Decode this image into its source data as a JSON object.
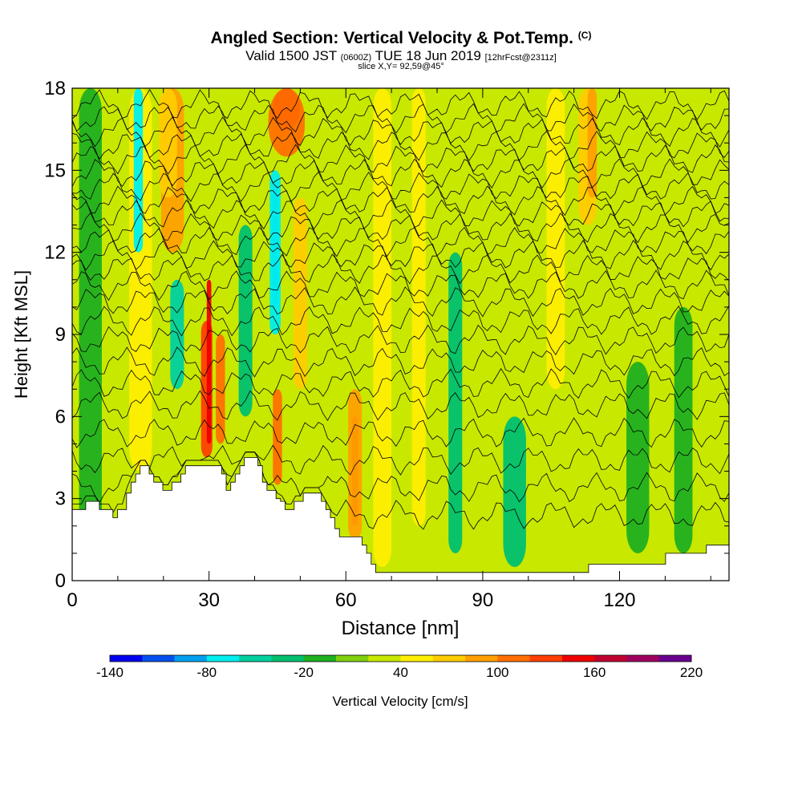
{
  "title": {
    "main": "Angled Section: Vertical Velocity & Pot.Temp.",
    "main_tag": "(C)",
    "valid_prefix": "Valid 1500 JST",
    "valid_zulu": "(0600Z)",
    "valid_date": "TUE 18 Jun 2019",
    "valid_fcst": "[12hrFcst@2311z]",
    "slice": "slice X,Y= 92,59@45°"
  },
  "colors": {
    "background": "#ffffff",
    "terrain": "#ffffff",
    "contour": "#000000",
    "colorbar": [
      "#0000ee",
      "#0050ee",
      "#00a0ee",
      "#00eeee",
      "#00d0a0",
      "#00c070",
      "#20b020",
      "#80d010",
      "#c8e800",
      "#ffee00",
      "#ffcc00",
      "#ffa000",
      "#ff7000",
      "#ff4000",
      "#ee0000",
      "#c00030",
      "#a00060",
      "#6a0090"
    ]
  },
  "chart_data": {
    "type": "heatmap",
    "xlabel": "Distance [nm]",
    "ylabel": "Height [Kft MSL]",
    "xlim": [
      0,
      144
    ],
    "ylim": [
      0,
      18
    ],
    "xticks": [
      0,
      30,
      60,
      90,
      120
    ],
    "yticks": [
      0,
      3,
      6,
      9,
      12,
      15,
      18
    ],
    "colorbar": {
      "label": "Vertical Velocity [cm/s]",
      "min": -140,
      "max": 220,
      "step": 20,
      "tick_labels": [
        -140,
        -80,
        -20,
        40,
        100,
        160,
        220
      ]
    },
    "velocity_bands": [
      {
        "x": 4,
        "w": 5,
        "y0": 0,
        "y1": 18,
        "v": -20
      },
      {
        "x": 15,
        "w": 5,
        "y0": 4,
        "y1": 18,
        "v": 40
      },
      {
        "x": 14.5,
        "w": 2,
        "y0": 12,
        "y1": 18,
        "v": -80
      },
      {
        "x": 22,
        "w": 5,
        "y0": 12,
        "y1": 18,
        "v": 80
      },
      {
        "x": 21,
        "w": 4,
        "y0": 14,
        "y1": 18,
        "v": 60
      },
      {
        "x": 23,
        "w": 3,
        "y0": 7,
        "y1": 11,
        "v": -60
      },
      {
        "x": 29.5,
        "w": 2.5,
        "y0": 4.5,
        "y1": 9.5,
        "v": 120
      },
      {
        "x": 32.5,
        "w": 2,
        "y0": 5,
        "y1": 9,
        "v": 100
      },
      {
        "x": 30,
        "w": 1,
        "y0": 5,
        "y1": 11,
        "v": 140
      },
      {
        "x": 38,
        "w": 3,
        "y0": 6,
        "y1": 13,
        "v": -40
      },
      {
        "x": 44.5,
        "w": 1.2,
        "y0": 10,
        "y1": 14.5,
        "v": -100
      },
      {
        "x": 44.5,
        "w": 2.4,
        "y0": 9,
        "y1": 15,
        "v": -80
      },
      {
        "x": 47,
        "w": 6,
        "y0": 16.5,
        "y1": 18,
        "v": 140
      },
      {
        "x": 47,
        "w": 8,
        "y0": 15.5,
        "y1": 18,
        "v": 100
      },
      {
        "x": 45,
        "w": 2,
        "y0": 3.5,
        "y1": 7,
        "v": 100
      },
      {
        "x": 50,
        "w": 3,
        "y0": 7,
        "y1": 14,
        "v": 60
      },
      {
        "x": 62,
        "w": 1.3,
        "y0": 2,
        "y1": 6,
        "v": 140
      },
      {
        "x": 62,
        "w": 3,
        "y0": 1.5,
        "y1": 7,
        "v": 80
      },
      {
        "x": 68,
        "w": 4,
        "y0": 0.5,
        "y1": 18,
        "v": 40
      },
      {
        "x": 76,
        "w": 3,
        "y0": 2,
        "y1": 18,
        "v": 40
      },
      {
        "x": 84,
        "w": 3,
        "y0": 1,
        "y1": 12,
        "v": -40
      },
      {
        "x": 97,
        "w": 5,
        "y0": 0.5,
        "y1": 6,
        "v": -40
      },
      {
        "x": 106,
        "w": 4,
        "y0": 7,
        "y1": 18,
        "v": 40
      },
      {
        "x": 113,
        "w": 4,
        "y0": 13,
        "y1": 18,
        "v": 60
      },
      {
        "x": 114,
        "w": 2,
        "y0": 14,
        "y1": 18,
        "v": 80
      },
      {
        "x": 124,
        "w": 5,
        "y0": 1,
        "y1": 8,
        "v": -20
      },
      {
        "x": 134,
        "w": 4,
        "y0": 1,
        "y1": 10,
        "v": -20
      }
    ],
    "terrain_kft": [
      2.6,
      2.6,
      2.6,
      2.9,
      2.9,
      2.9,
      2.6,
      2.6,
      2.6,
      2.3,
      2.6,
      2.6,
      3.2,
      3.6,
      3.9,
      4.2,
      4.2,
      3.9,
      3.6,
      3.6,
      3.3,
      3.3,
      3.6,
      3.6,
      3.9,
      4.2,
      4.2,
      4.2,
      4.2,
      4.2,
      4.2,
      4.2,
      4.2,
      3.9,
      3.3,
      3.6,
      3.9,
      4.2,
      4.5,
      4.5,
      4.5,
      4.2,
      3.6,
      3.3,
      3.3,
      3.0,
      2.9,
      2.6,
      2.6,
      2.9,
      2.9,
      3.2,
      3.2,
      3.2,
      3.2,
      2.9,
      2.6,
      2.3,
      1.9,
      1.6,
      1.6,
      1.6,
      1.6,
      1.6,
      1.3,
      1.0,
      0.6,
      0.3,
      0.3,
      0.3,
      0.3,
      0.3,
      0.3,
      0.3,
      0.3,
      0.3,
      0.3,
      0.3,
      0.3,
      0.3,
      0.3,
      0.3,
      0.3,
      0.3,
      0.3,
      0.3,
      0.3,
      0.3,
      0.3,
      0.3,
      0.3,
      0.3,
      0.3,
      0.3,
      0.3,
      0.3,
      0.3,
      0.3,
      0.3,
      0.3,
      0.3,
      0.3,
      0.3,
      0.3,
      0.3,
      0.3,
      0.3,
      0.3,
      0.3,
      0.3,
      0.3,
      0.3,
      0.3,
      0.3,
      0.6,
      0.6,
      0.6,
      0.6,
      0.6,
      0.6,
      0.6,
      0.6,
      0.6,
      0.6,
      0.6,
      0.6,
      0.6,
      0.6,
      0.6,
      0.6,
      0.6,
      1.0,
      1.0,
      1.0,
      1.0,
      1.0,
      1.0,
      1.0,
      1.0,
      1.0,
      1.3,
      1.3,
      1.3,
      1.3,
      1.3,
      1.3
    ],
    "contour_levels_kft": [
      2.4,
      3.4,
      4.4,
      5.4,
      6.4,
      7.2,
      8.0,
      8.8,
      9.5,
      10.2,
      10.8,
      11.4,
      11.9,
      12.4,
      12.9,
      13.4,
      13.9,
      14.4,
      14.9,
      15.4,
      15.9,
      16.4,
      16.9,
      17.4
    ]
  }
}
